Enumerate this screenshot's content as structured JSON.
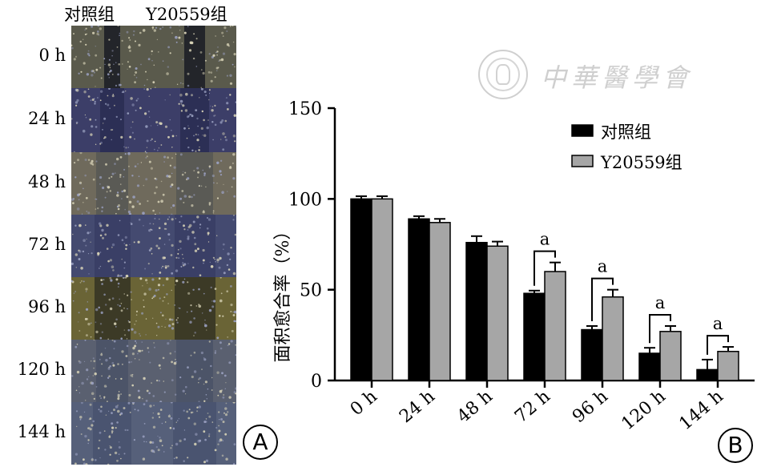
{
  "panel_a": {
    "header_control": "对照组",
    "header_treatment": "Y20559组",
    "time_labels": [
      "0 h",
      "24 h",
      "48 h",
      "72 h",
      "96 h",
      "120 h",
      "144 h"
    ],
    "panel_letter": "A"
  },
  "watermark": {
    "text": "中華醫學會"
  },
  "panel_b": {
    "panel_letter": "B"
  },
  "colors": {
    "control_bar": "#000000",
    "treatment_bar": "#a6a6a6"
  },
  "chart_data": {
    "type": "bar",
    "categories": [
      "0 h",
      "24 h",
      "48 h",
      "72 h",
      "96 h",
      "120 h",
      "144 h"
    ],
    "series": [
      {
        "name": "对照组",
        "values": [
          100,
          89,
          76,
          48,
          28,
          15,
          6
        ],
        "errors": [
          1.5,
          1.5,
          3.5,
          1.5,
          2,
          3,
          5.5
        ]
      },
      {
        "name": "Y20559组",
        "values": [
          100,
          87,
          74,
          60,
          46,
          27,
          16
        ],
        "errors": [
          1.5,
          2,
          2.5,
          5,
          4,
          3,
          2.5
        ]
      }
    ],
    "ylabel": "面积愈合率（%）",
    "xlabel": "",
    "ylim": [
      0,
      150
    ],
    "yticks": [
      0,
      50,
      100,
      150
    ],
    "significance": {
      "label": "a",
      "categories": [
        "72 h",
        "96 h",
        "120 h",
        "144 h"
      ]
    },
    "legend_position": "top-right",
    "grid": false
  }
}
